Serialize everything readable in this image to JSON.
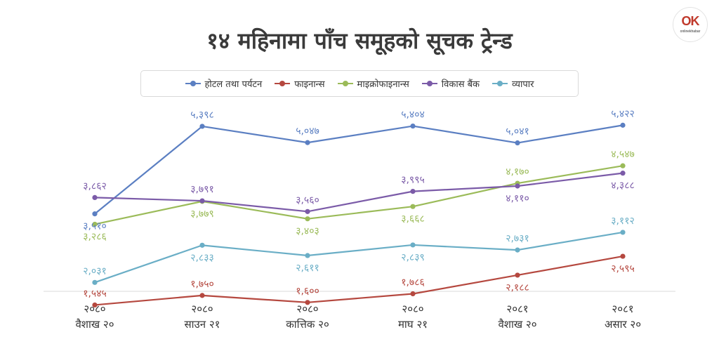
{
  "logo": {
    "mark": "OK",
    "brand": "onlinekhabar"
  },
  "chart_data": {
    "type": "line",
    "title": "१४ महिनामा पाँच समूहको सूचक ट्रेन्ड",
    "xlabel": "",
    "ylabel": "",
    "legend_position": "top",
    "grid": false,
    "ylim": [
      1400,
      5700
    ],
    "categories": [
      [
        "२०८०",
        "वैशाख २०"
      ],
      [
        "२०८०",
        "साउन २१"
      ],
      [
        "२०८०",
        "कात्तिक २०"
      ],
      [
        "२०८०",
        "माघ २१"
      ],
      [
        "२०८१",
        "वैशाख २०"
      ],
      [
        "२०८१",
        "असार २०"
      ]
    ],
    "series": [
      {
        "name": "होटल तथा पर्यटन",
        "color": "#5b7fc2",
        "values": [
          3510,
          5398,
          5047,
          5404,
          5041,
          5422
        ],
        "labels": [
          "३,५१०",
          "५,३९८",
          "५,०४७",
          "५,४०४",
          "५,०४१",
          "५,४२२"
        ],
        "label_pos": [
          "below",
          "above",
          "above",
          "above",
          "above",
          "above"
        ]
      },
      {
        "name": "फाइनान्स",
        "color": "#b5483f",
        "values": [
          1545,
          1750,
          1600,
          1786,
          2188,
          2595
        ],
        "labels": [
          "१,५४५",
          "१,७५०",
          "१,६००",
          "१,७८६",
          "२,१८८",
          "२,५९५"
        ],
        "label_pos": [
          "above",
          "above",
          "above",
          "above",
          "below",
          "below"
        ]
      },
      {
        "name": "माइक्रोफाइनान्स",
        "color": "#9bbb59",
        "values": [
          3286,
          3779,
          3403,
          3668,
          4170,
          4547
        ],
        "labels": [
          "३,२८६",
          "३,७७९",
          "३,४०३",
          "३,६६८",
          "४,१७०",
          "४,५४७"
        ],
        "label_pos": [
          "below",
          "below",
          "below",
          "below",
          "above",
          "above"
        ]
      },
      {
        "name": "विकास बैंक",
        "color": "#7b5ba8",
        "values": [
          3862,
          3791,
          3560,
          3995,
          4110,
          4388
        ],
        "labels": [
          "३,८६२",
          "३,७९१",
          "३,५६०",
          "३,९९५",
          "४,११०",
          "४,३८८"
        ],
        "label_pos": [
          "above",
          "above",
          "above",
          "above",
          "below",
          "below"
        ]
      },
      {
        "name": "व्यापार",
        "color": "#6aaec6",
        "values": [
          2031,
          2833,
          2611,
          2839,
          2731,
          3112
        ],
        "labels": [
          "२,०३१",
          "२,८३३",
          "२,६११",
          "२,८३९",
          "२,७३१",
          "३,११२"
        ],
        "label_pos": [
          "above",
          "below",
          "below",
          "below",
          "above",
          "above"
        ]
      }
    ]
  }
}
